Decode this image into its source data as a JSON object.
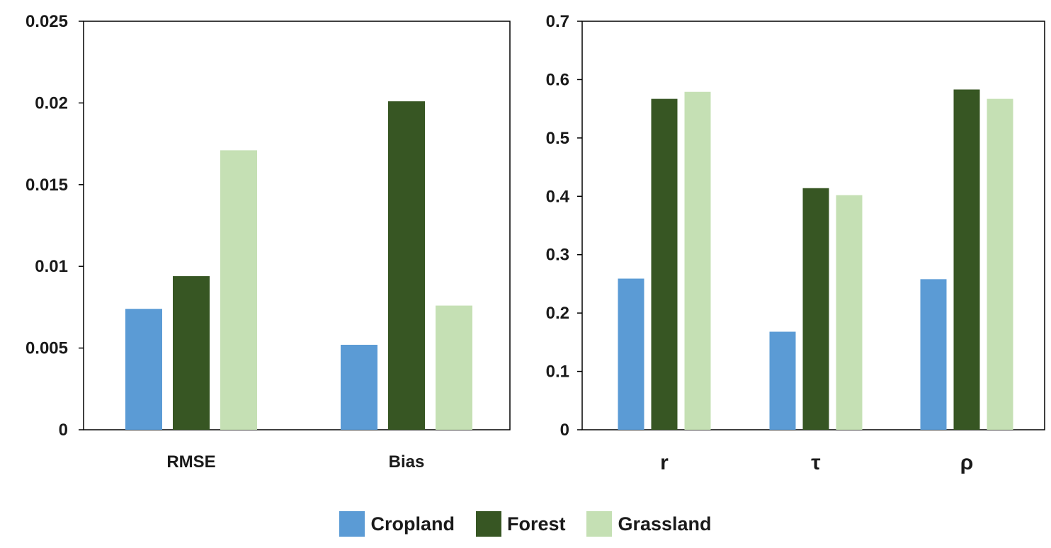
{
  "colors": {
    "Cropland": "#5b9bd5",
    "Forest": "#375623",
    "Grassland": "#c5e0b4"
  },
  "legend": [
    {
      "name": "Cropland"
    },
    {
      "name": "Forest"
    },
    {
      "name": "Grassland"
    }
  ],
  "chart_data": [
    {
      "type": "bar",
      "categories": [
        "RMSE",
        "Bias"
      ],
      "series": [
        {
          "name": "Cropland",
          "values": [
            0.0074,
            0.0052
          ]
        },
        {
          "name": "Forest",
          "values": [
            0.0094,
            0.0201
          ]
        },
        {
          "name": "Grassland",
          "values": [
            0.0171,
            0.0076
          ]
        }
      ],
      "yticks": [
        "0",
        "0.005",
        "0.01",
        "0.015",
        "0.02",
        "0.025"
      ],
      "ylim": [
        0,
        0.025
      ],
      "grid": false,
      "legend": "bottom-center"
    },
    {
      "type": "bar",
      "categories": [
        "r",
        "τ",
        "ρ"
      ],
      "series": [
        {
          "name": "Cropland",
          "values": [
            0.259,
            0.168,
            0.258
          ]
        },
        {
          "name": "Forest",
          "values": [
            0.567,
            0.414,
            0.583
          ]
        },
        {
          "name": "Grassland",
          "values": [
            0.579,
            0.402,
            0.567
          ]
        }
      ],
      "yticks": [
        "0",
        "0.1",
        "0.2",
        "0.3",
        "0.4",
        "0.5",
        "0.6",
        "0.7"
      ],
      "ylim": [
        0,
        0.7
      ],
      "grid": false,
      "legend": "bottom-center"
    }
  ]
}
